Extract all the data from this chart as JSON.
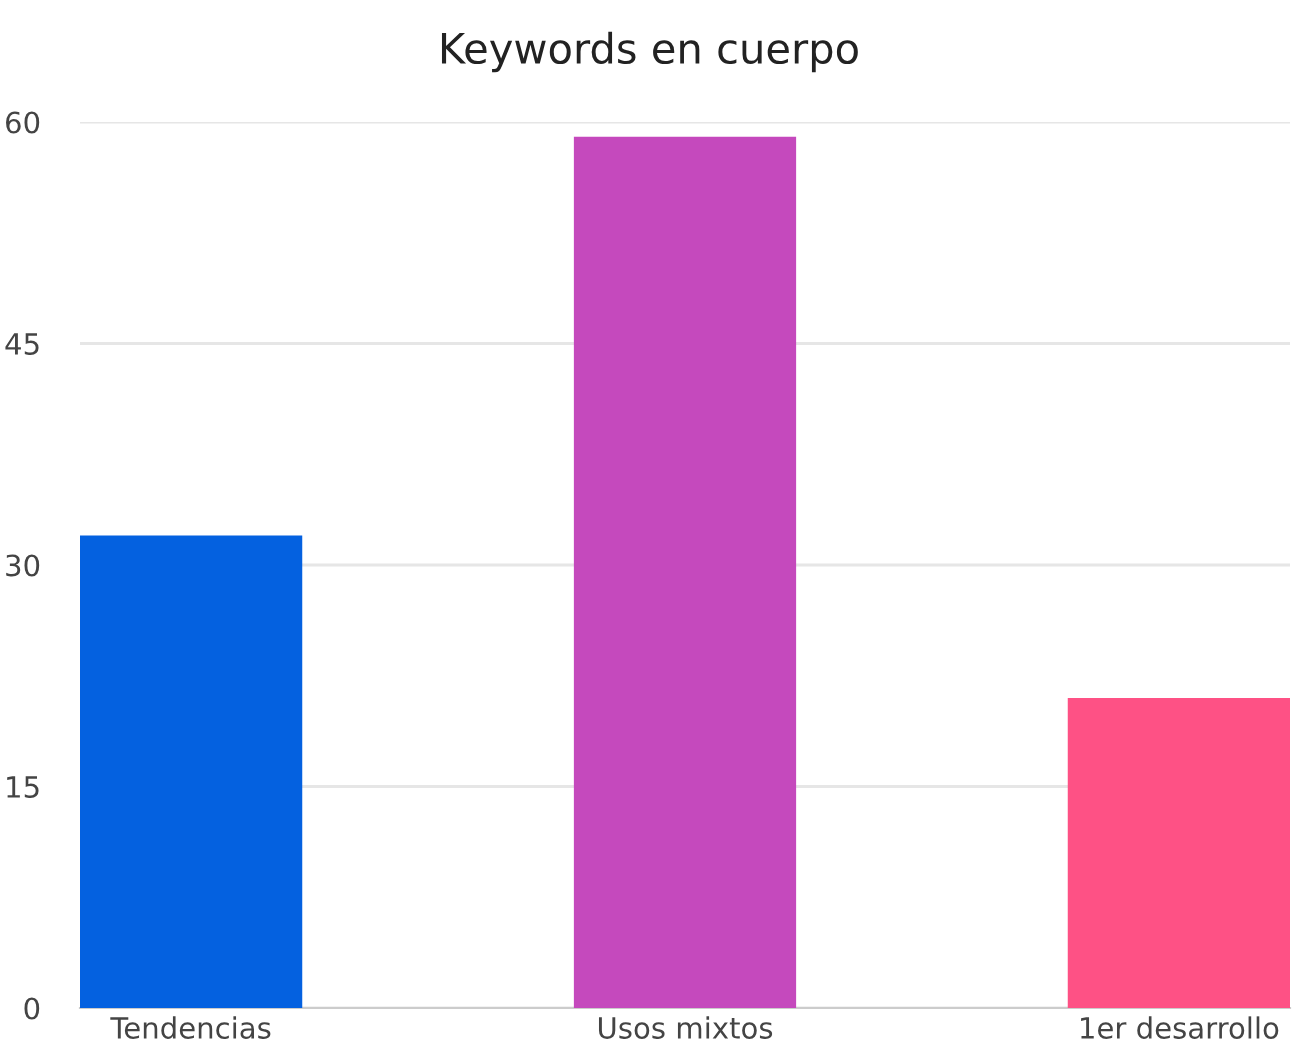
{
  "chart_data": {
    "type": "bar",
    "title": "Keywords en cuerpo",
    "categories": [
      "Tendencias",
      "Usos mixtos",
      "1er desarrollo"
    ],
    "values": [
      32,
      59,
      21
    ],
    "colors": [
      "#0461e0",
      "#c549bd",
      "#fe5185"
    ],
    "ylim": [
      0,
      60
    ],
    "yticks": [
      0,
      15,
      30,
      45,
      60
    ],
    "grid": "y"
  }
}
